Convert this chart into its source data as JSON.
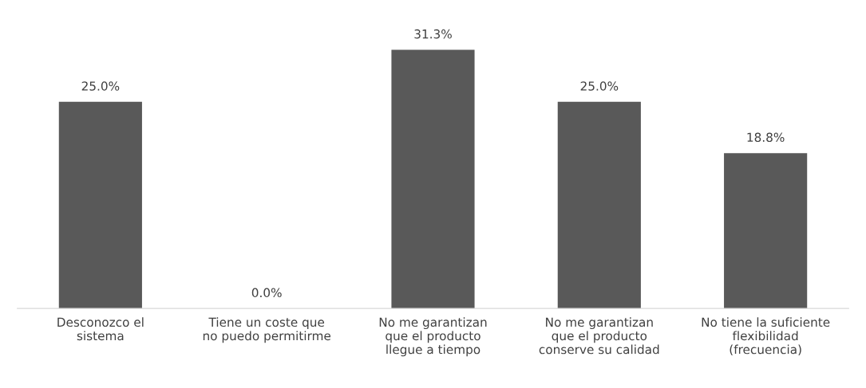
{
  "chart_data": {
    "type": "bar",
    "categories": [
      "Desconozco el\nsistema",
      "Tiene un coste que\nno puedo permitirme",
      "No me garantizan\nque el producto\nllegue a tiempo",
      "No me garantizan\nque el producto\nconserve su calidad",
      "No tiene la suficiente\nflexibilidad\n(frecuencia)"
    ],
    "values": [
      25.0,
      0.0,
      31.3,
      25.0,
      18.8
    ],
    "value_labels": [
      "25.0%",
      "0.0%",
      "31.3%",
      "25.0%",
      "18.8%"
    ],
    "color": "#595959",
    "grid": false,
    "legend": false
  }
}
